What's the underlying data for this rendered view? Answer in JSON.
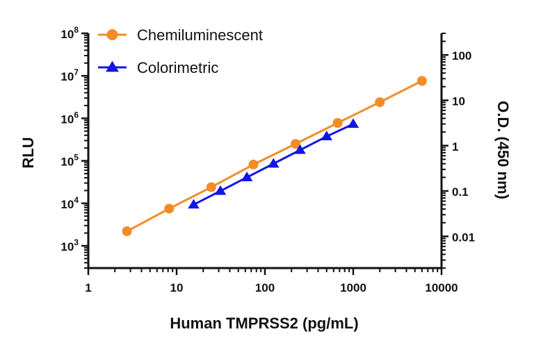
{
  "chart_data": {
    "type": "line",
    "xlabel": "Human TMPRSS2 (pg/mL)",
    "ylabel": "RLU",
    "y2label": "O.D. (450 nm)",
    "x_scale": "log",
    "y_scale": "log",
    "y2_scale": "log",
    "xlim": [
      1,
      10000
    ],
    "ylim": [
      300,
      100000000
    ],
    "y2lim": [
      0.002,
      300
    ],
    "x_ticks": [
      {
        "value": 1,
        "label": "1"
      },
      {
        "value": 10,
        "label": "10"
      },
      {
        "value": 100,
        "label": "100"
      },
      {
        "value": 1000,
        "label": "1000"
      },
      {
        "value": 10000,
        "label": "10000"
      }
    ],
    "y_ticks": [
      {
        "value": 1000,
        "base": "10",
        "exp": "3"
      },
      {
        "value": 10000,
        "base": "10",
        "exp": "4"
      },
      {
        "value": 100000,
        "base": "10",
        "exp": "5"
      },
      {
        "value": 1000000,
        "base": "10",
        "exp": "6"
      },
      {
        "value": 10000000,
        "base": "10",
        "exp": "7"
      },
      {
        "value": 100000000,
        "base": "10",
        "exp": "8"
      }
    ],
    "y2_ticks": [
      {
        "value": 0.01,
        "label": "0.01"
      },
      {
        "value": 0.1,
        "label": "0.1"
      },
      {
        "value": 1,
        "label": "1"
      },
      {
        "value": 10,
        "label": "10"
      },
      {
        "value": 100,
        "label": "100"
      }
    ],
    "grid": false,
    "legend_position": "top-left",
    "series": [
      {
        "name": "Chemiluminescent",
        "axis": "left",
        "color": "#F28C28",
        "marker": "circle",
        "x": [
          2.74,
          8.23,
          24.7,
          74.1,
          222,
          667,
          2000,
          6000
        ],
        "y": [
          2200,
          7500,
          24000,
          82000,
          250000,
          780000,
          2400000,
          7600000
        ]
      },
      {
        "name": "Colorimetric",
        "axis": "right",
        "color": "#1414E6",
        "marker": "triangle",
        "x": [
          15.6,
          31.3,
          62.5,
          125,
          250,
          500,
          1000
        ],
        "y": [
          0.05,
          0.1,
          0.2,
          0.4,
          0.8,
          1.6,
          3.0
        ]
      }
    ]
  }
}
